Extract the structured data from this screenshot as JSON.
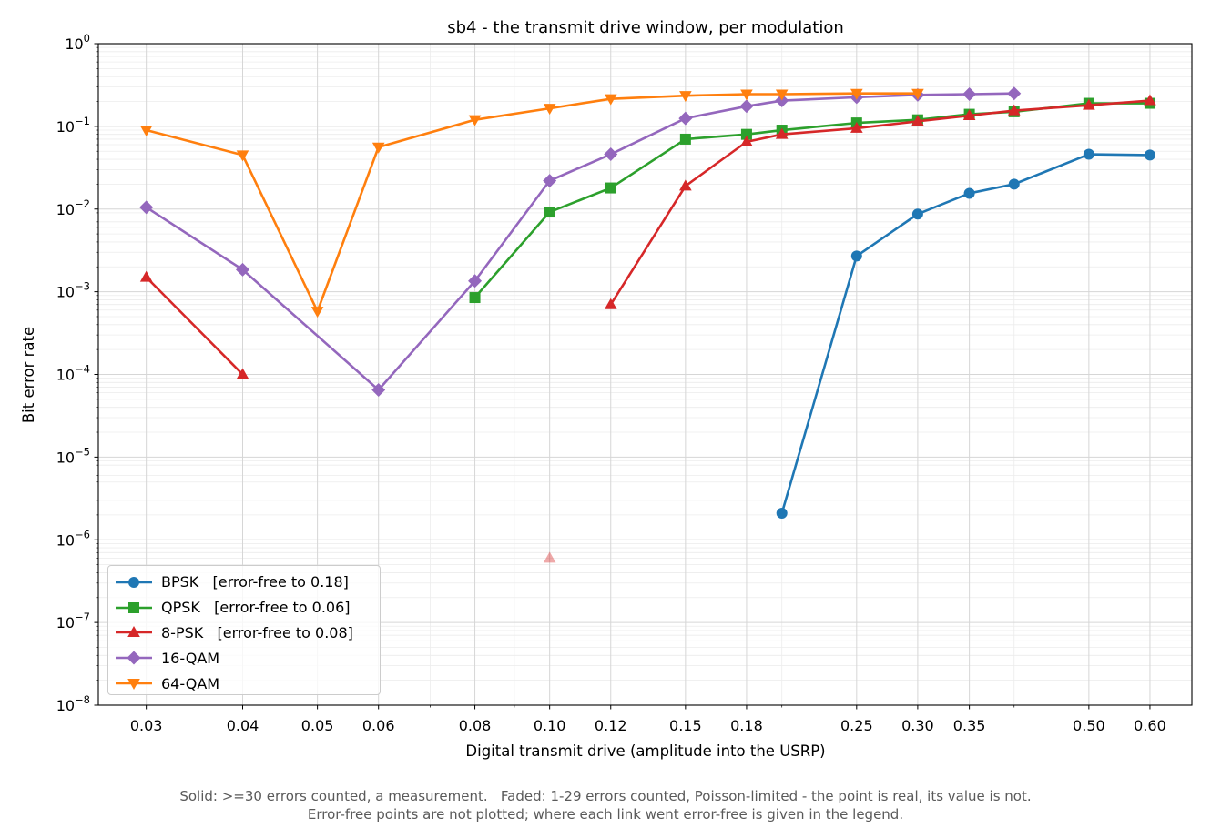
{
  "chart_data": {
    "type": "line",
    "title": "sb4 - the transmit drive window, per modulation",
    "xlabel": "Digital transmit drive (amplitude into the USRP)",
    "ylabel": "Bit error rate",
    "xscale": "log",
    "yscale": "log",
    "xlim": [
      0.026,
      0.68
    ],
    "ylim": [
      1e-08,
      1
    ],
    "xticks": [
      0.03,
      0.04,
      0.05,
      0.06,
      0.08,
      0.1,
      0.12,
      0.15,
      0.18,
      0.25,
      0.3,
      0.35,
      0.5,
      0.6
    ],
    "xtick_labels": [
      "0.03",
      "0.04",
      "0.05",
      "0.06",
      "0.08",
      "0.10",
      "0.12",
      "0.15",
      "0.18",
      "0.25",
      "0.30",
      "0.35",
      "0.50",
      "0.60"
    ],
    "ytick_exponents": [
      -8,
      -7,
      -6,
      -5,
      -4,
      -3,
      -2,
      -1,
      0
    ],
    "grid": true,
    "legend_position": "lower-left",
    "series": [
      {
        "name": "BPSK   [error-free to 0.18]",
        "color": "#1f77b4",
        "marker": "circle",
        "segments": [
          [
            [
              0.2,
              2.1e-06
            ],
            [
              0.25,
              0.0027
            ],
            [
              0.3,
              0.0087
            ],
            [
              0.35,
              0.0155
            ],
            [
              0.4,
              0.02
            ],
            [
              0.5,
              0.046
            ],
            [
              0.6,
              0.045
            ]
          ]
        ]
      },
      {
        "name": "QPSK   [error-free to 0.06]",
        "color": "#2ca02c",
        "marker": "square",
        "segments": [
          [
            [
              0.08,
              0.00085
            ],
            [
              0.1,
              0.0092
            ],
            [
              0.12,
              0.018
            ],
            [
              0.15,
              0.07
            ],
            [
              0.18,
              0.08
            ],
            [
              0.2,
              0.09
            ],
            [
              0.25,
              0.11
            ],
            [
              0.3,
              0.12
            ],
            [
              0.35,
              0.14
            ],
            [
              0.4,
              0.15
            ],
            [
              0.5,
              0.19
            ],
            [
              0.6,
              0.19
            ]
          ]
        ]
      },
      {
        "name": "8-PSK   [error-free to 0.08]",
        "color": "#d62728",
        "marker": "triangle-up",
        "segments": [
          [
            [
              0.03,
              0.0015
            ],
            [
              0.04,
              0.0001
            ]
          ],
          [
            [
              0.12,
              0.0007
            ],
            [
              0.15,
              0.019
            ],
            [
              0.18,
              0.065
            ],
            [
              0.2,
              0.08
            ],
            [
              0.25,
              0.095
            ],
            [
              0.3,
              0.115
            ],
            [
              0.35,
              0.135
            ],
            [
              0.4,
              0.155
            ],
            [
              0.5,
              0.18
            ],
            [
              0.6,
              0.205
            ]
          ]
        ],
        "faded_points": [
          [
            0.1,
            6e-07
          ]
        ]
      },
      {
        "name": "16-QAM",
        "color": "#9467bd",
        "marker": "diamond",
        "segments": [
          [
            [
              0.03,
              0.0105
            ],
            [
              0.04,
              0.00185
            ],
            [
              0.06,
              6.5e-05
            ],
            [
              0.08,
              0.00135
            ],
            [
              0.1,
              0.022
            ],
            [
              0.12,
              0.046
            ],
            [
              0.15,
              0.125
            ],
            [
              0.18,
              0.175
            ],
            [
              0.2,
              0.205
            ],
            [
              0.25,
              0.225
            ],
            [
              0.3,
              0.24
            ],
            [
              0.35,
              0.245
            ],
            [
              0.4,
              0.25
            ]
          ]
        ]
      },
      {
        "name": "64-QAM",
        "color": "#ff7f0e",
        "marker": "triangle-down",
        "segments": [
          [
            [
              0.03,
              0.09
            ],
            [
              0.04,
              0.045
            ],
            [
              0.05,
              0.00058
            ],
            [
              0.06,
              0.056
            ],
            [
              0.08,
              0.12
            ],
            [
              0.1,
              0.165
            ],
            [
              0.12,
              0.215
            ],
            [
              0.15,
              0.235
            ],
            [
              0.18,
              0.245
            ],
            [
              0.2,
              0.245
            ],
            [
              0.25,
              0.25
            ],
            [
              0.3,
              0.25
            ]
          ]
        ]
      }
    ]
  },
  "footnotes": [
    "Solid: >=30 errors counted, a measurement.   Faded: 1-29 errors counted, Poisson-limited - the point is real, its value is not.",
    "Error-free points are not plotted; where each link went error-free is given in the legend."
  ]
}
